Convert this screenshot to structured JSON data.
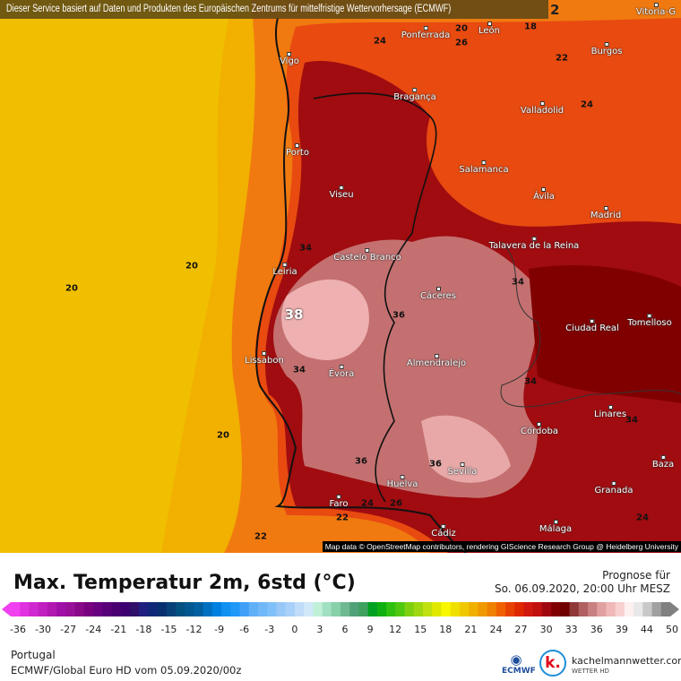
{
  "header": {
    "notice": "Dieser Service basiert auf Daten und Produkten des Europäischen Zentrums für mittelfristige Wettervorhersage (ECMWF)",
    "notice_suffix": "2"
  },
  "map": {
    "cities": [
      {
        "name": "Vitoria-G"
      },
      {
        "name": "Ponferrada"
      },
      {
        "name": "León"
      },
      {
        "name": "Burgos"
      },
      {
        "name": "Vigo"
      },
      {
        "name": "Bragança"
      },
      {
        "name": "Valladolid"
      },
      {
        "name": "Porto"
      },
      {
        "name": "Salamanca"
      },
      {
        "name": "Viseu"
      },
      {
        "name": "Ávila"
      },
      {
        "name": "Madrid"
      },
      {
        "name": "Talavera de la Reina"
      },
      {
        "name": "Castelo Branco"
      },
      {
        "name": "Leiria"
      },
      {
        "name": "Cáceres"
      },
      {
        "name": "Ciudad Real"
      },
      {
        "name": "Tomelloso"
      },
      {
        "name": "Lissabon"
      },
      {
        "name": "Almendralejo"
      },
      {
        "name": "Évora"
      },
      {
        "name": "Linares"
      },
      {
        "name": "Córdoba"
      },
      {
        "name": "Baza"
      },
      {
        "name": "Sevilla"
      },
      {
        "name": "Huelva"
      },
      {
        "name": "Granada"
      },
      {
        "name": "Faro"
      },
      {
        "name": "Málaga"
      },
      {
        "name": "Cádiz"
      }
    ],
    "contour_labels": [
      "38",
      "36",
      "36",
      "36",
      "34",
      "34",
      "34",
      "34",
      "34",
      "22",
      "22",
      "22",
      "20",
      "20",
      "20",
      "20",
      "24",
      "24",
      "24",
      "26",
      "24",
      "26",
      "18"
    ],
    "attribution": "Map data © OpenStreetMap contributors, rendering GIScience Research Group @ Heidelberg University"
  },
  "legend": {
    "title": "Max. Temperatur 2m, 6std (°C)",
    "forecast_label": "Prognose für",
    "forecast_time": "So. 06.09.2020, 20:00 Uhr MESZ",
    "ticks": [
      "-36",
      "-30",
      "-27",
      "-24",
      "-21",
      "-18",
      "-15",
      "-12",
      "-9",
      "-6",
      "-3",
      "0",
      "3",
      "6",
      "9",
      "12",
      "15",
      "18",
      "21",
      "24",
      "27",
      "30",
      "33",
      "36",
      "39",
      "44",
      "50"
    ],
    "colors": [
      "#f040f0",
      "#e030e0",
      "#d028d0",
      "#c020c0",
      "#b018b0",
      "#a010a8",
      "#981098",
      "#880888",
      "#780080",
      "#680080",
      "#580078",
      "#4a0070",
      "#3c0070",
      "#301068",
      "#202080",
      "#102878",
      "#083070",
      "#084078",
      "#005080",
      "#005890",
      "#0060a0",
      "#0070c0",
      "#0080e0",
      "#1090f0",
      "#2098f8",
      "#40a0f8",
      "#60b0f8",
      "#70b8f8",
      "#80c0f8",
      "#98c8f8",
      "#a8d0f8",
      "#c0dcf8",
      "#d0e8f8",
      "#c0f0d8",
      "#a0e0c0",
      "#88d0a8",
      "#70b890",
      "#50a078",
      "#40a060",
      "#00a020",
      "#10b010",
      "#30c010",
      "#50c810",
      "#80d010",
      "#a0d810",
      "#c0e010",
      "#e0e800",
      "#f8f800",
      "#f0e000",
      "#f0c800",
      "#f0b000",
      "#f09800",
      "#f08000",
      "#f06000",
      "#e84000",
      "#e02800",
      "#d01810",
      "#c01010",
      "#a00810",
      "#800000",
      "#700000",
      "#903838",
      "#b06060",
      "#c88080",
      "#e0a0a0",
      "#f0b8b8",
      "#f8d0d0",
      "#fff0f0",
      "#e8e8e8",
      "#c8c8c8",
      "#a0a0a0",
      "#808080"
    ]
  },
  "footer": {
    "region": "Portugal",
    "model": "ECMWF/Global Euro HD vom  05.09.2020/00z",
    "ecmwf_logo": "ECMWF",
    "brand": "kachelmannwetter.com",
    "brand_sub": "WETTER HD",
    "brand_mark": "k."
  }
}
